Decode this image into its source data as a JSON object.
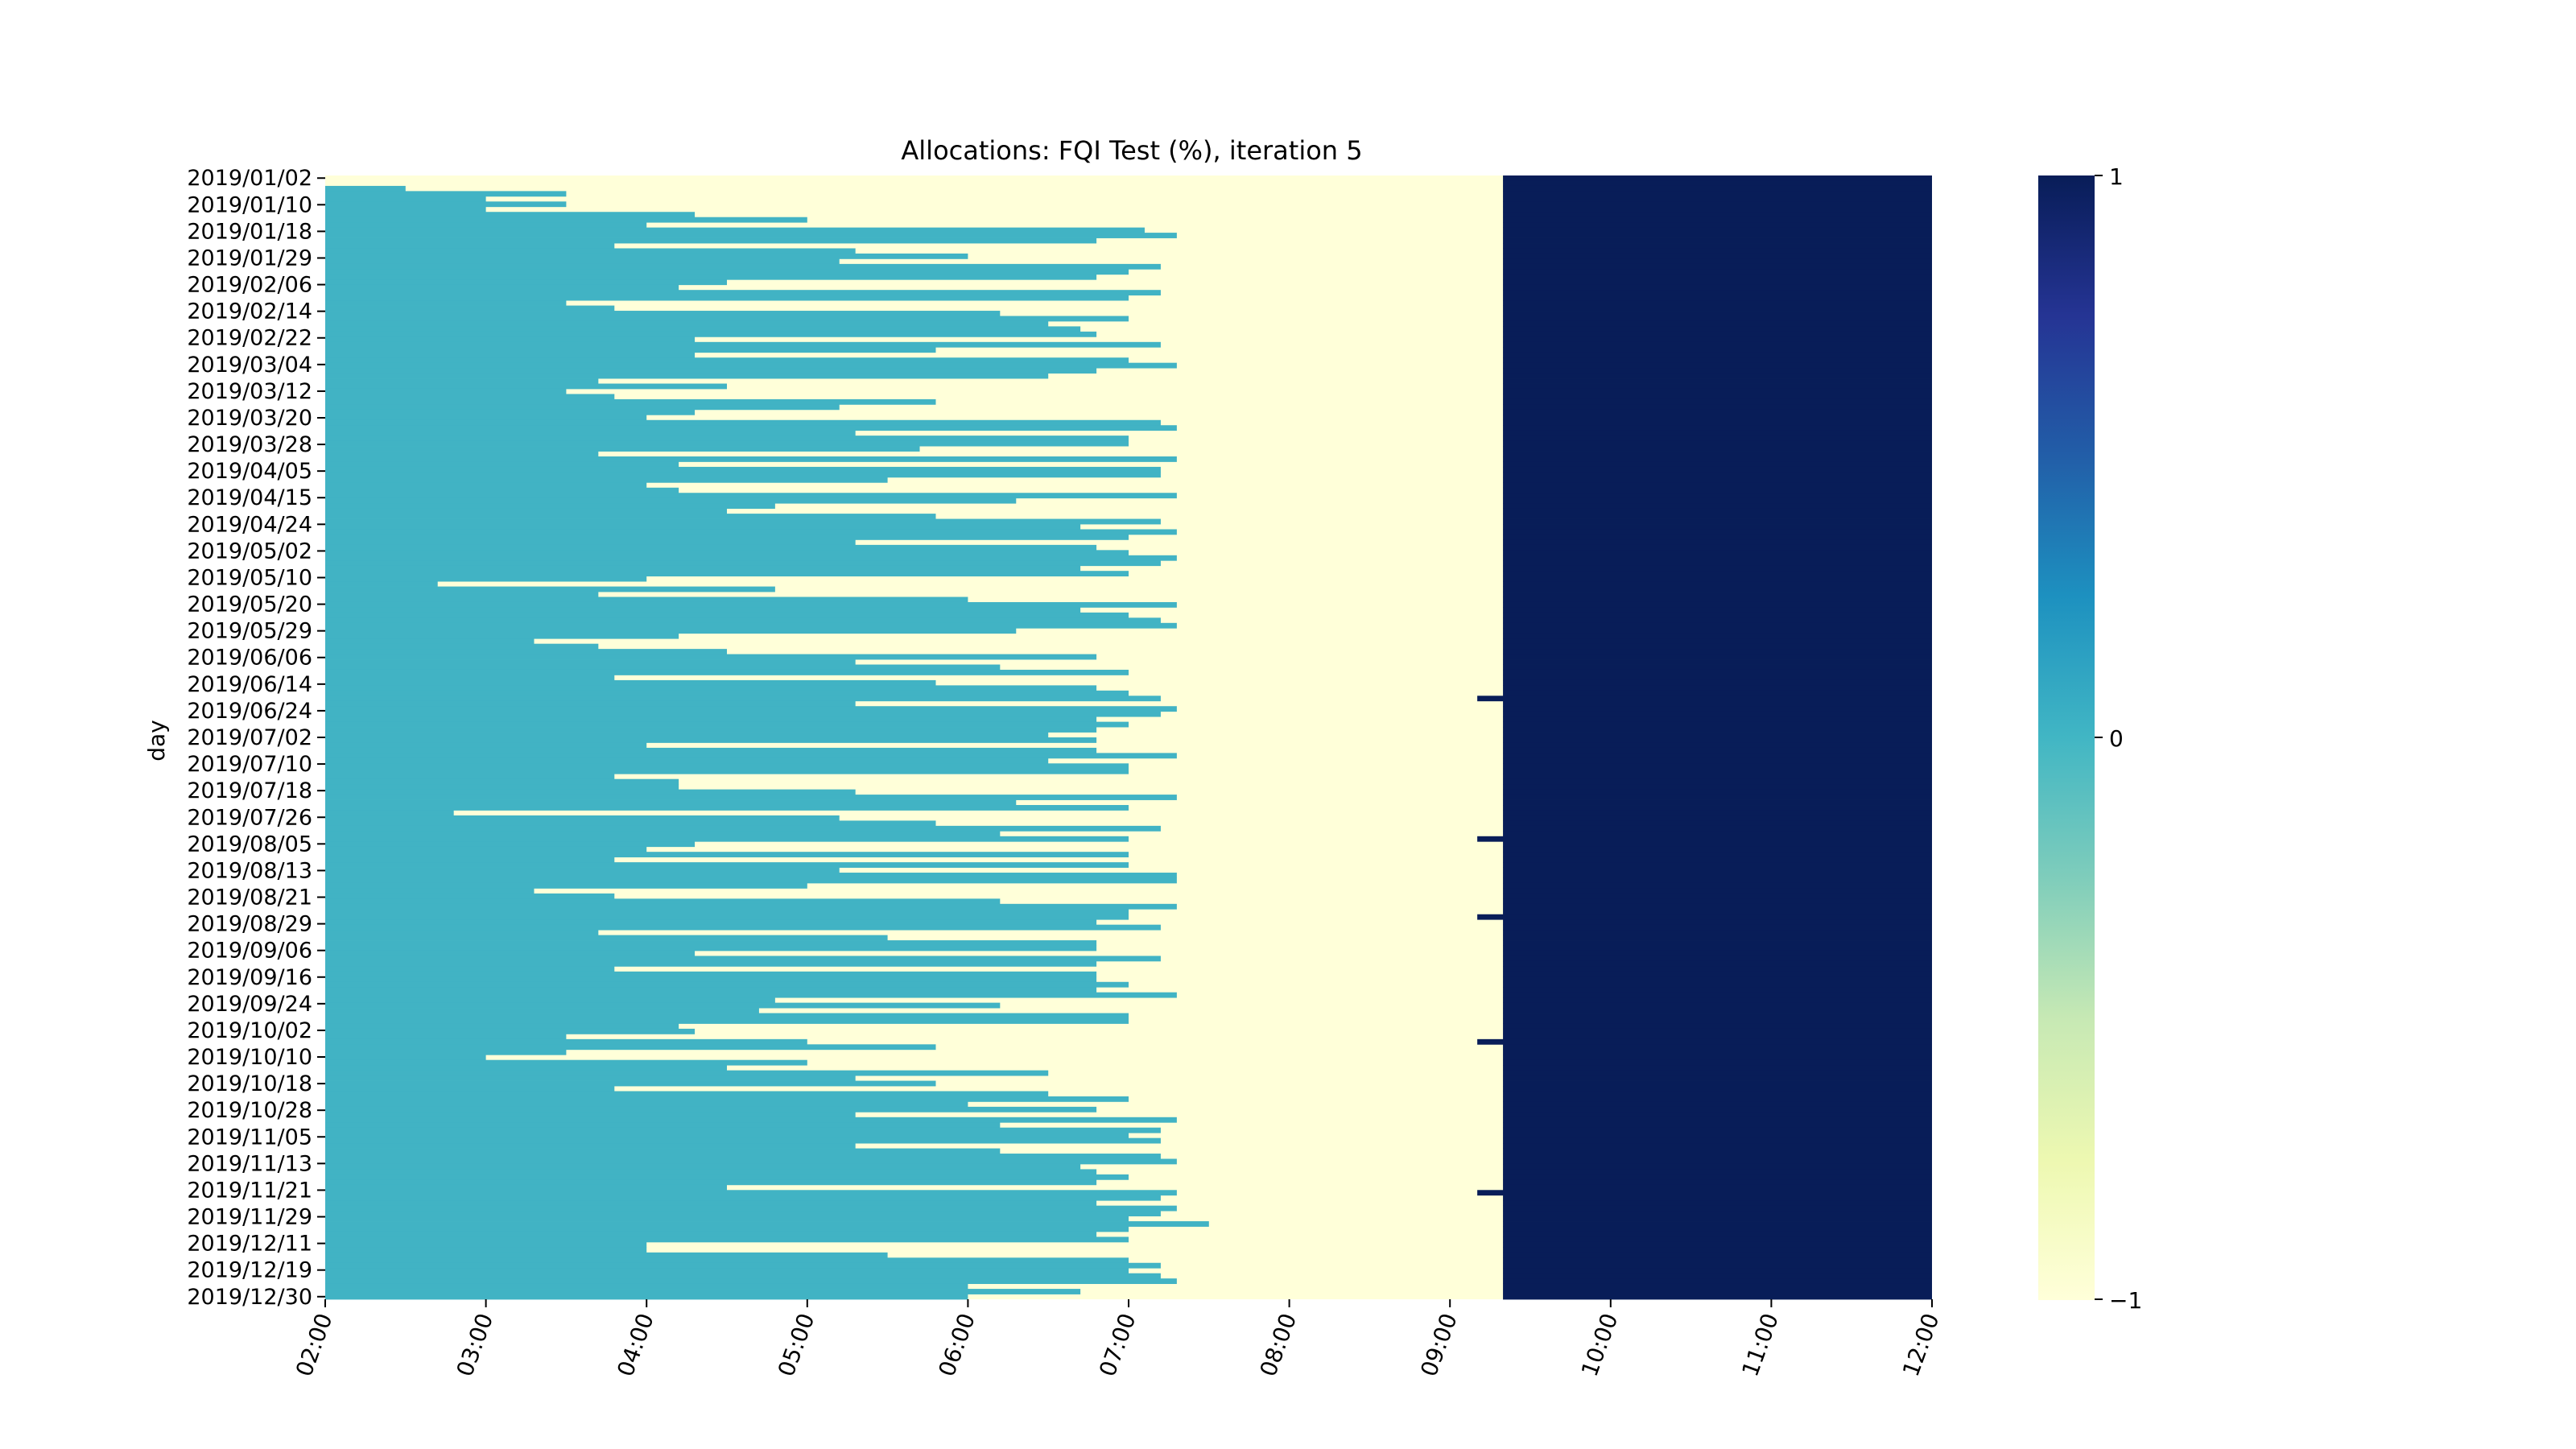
{
  "chart_data": {
    "type": "heatmap",
    "title": "Allocations: FQI Test (%), iteration 5",
    "ylabel": "day",
    "xlabel": "",
    "x_ticks": [
      "02:00",
      "03:00",
      "04:00",
      "05:00",
      "06:00",
      "07:00",
      "08:00",
      "09:00",
      "10:00",
      "11:00",
      "12:00"
    ],
    "y_ticks": [
      "2019/01/02",
      "2019/01/10",
      "2019/01/18",
      "2019/01/29",
      "2019/02/06",
      "2019/02/14",
      "2019/02/22",
      "2019/03/04",
      "2019/03/12",
      "2019/03/20",
      "2019/03/28",
      "2019/04/05",
      "2019/04/15",
      "2019/04/24",
      "2019/05/02",
      "2019/05/10",
      "2019/05/20",
      "2019/05/29",
      "2019/06/06",
      "2019/06/14",
      "2019/06/24",
      "2019/07/02",
      "2019/07/10",
      "2019/07/18",
      "2019/07/26",
      "2019/08/05",
      "2019/08/13",
      "2019/08/21",
      "2019/08/29",
      "2019/09/06",
      "2019/09/16",
      "2019/09/24",
      "2019/10/02",
      "2019/10/10",
      "2019/10/18",
      "2019/10/28",
      "2019/11/05",
      "2019/11/13",
      "2019/11/21",
      "2019/11/29",
      "2019/12/11",
      "2019/12/19",
      "2019/12/30"
    ],
    "colorbar": {
      "ticks": [
        "1",
        "0",
        "−1"
      ],
      "colormap": "YlGnBu",
      "vmin": -1,
      "vmax": 1
    },
    "values_legend": {
      "0": "teal #41b3c4",
      "-1": "pale yellow #ffffd9",
      "1": "navy #081d58"
    },
    "x_range": [
      "02:00",
      "12:00"
    ],
    "slot_minutes": 10,
    "rows": [
      [
        0.5,
        9.33,
        9.5
      ],
      [
        1.0,
        9.33,
        9.5
      ],
      [
        2.5,
        9.33,
        9.5
      ],
      [
        3.5,
        9.33,
        9.5
      ],
      [
        3.0,
        9.33,
        9.5
      ],
      [
        3.5,
        9.33,
        9.5
      ],
      [
        3.0,
        9.33,
        9.5
      ],
      [
        4.3,
        9.33,
        9.5
      ],
      [
        5.0,
        9.33,
        9.5
      ],
      [
        4.0,
        9.33,
        9.5
      ],
      [
        7.1,
        9.33,
        9.5
      ],
      [
        7.3,
        9.33,
        9.5
      ],
      [
        6.8,
        9.33,
        9.5
      ],
      [
        3.8,
        9.33,
        9.5
      ],
      [
        5.3,
        9.33,
        9.5
      ],
      [
        6.0,
        9.33,
        9.5
      ],
      [
        5.2,
        9.33,
        9.5
      ],
      [
        7.2,
        9.33,
        9.5
      ],
      [
        7.0,
        9.33,
        9.5
      ],
      [
        6.8,
        9.33,
        9.5
      ],
      [
        4.5,
        9.33,
        9.5
      ],
      [
        4.2,
        9.33,
        9.5
      ],
      [
        7.2,
        9.33,
        9.5
      ],
      [
        7.0,
        9.33,
        9.5
      ],
      [
        3.5,
        9.33,
        9.5
      ],
      [
        3.8,
        9.33,
        9.5
      ],
      [
        6.2,
        9.33,
        9.5
      ],
      [
        7.0,
        9.33,
        9.5
      ],
      [
        6.5,
        9.33,
        9.5
      ],
      [
        6.7,
        9.33,
        9.5
      ],
      [
        6.8,
        9.33,
        9.5
      ],
      [
        4.3,
        9.33,
        9.5
      ],
      [
        7.2,
        9.33,
        9.5
      ],
      [
        5.8,
        9.33,
        9.5
      ],
      [
        4.3,
        9.33,
        9.5
      ],
      [
        7.0,
        9.33,
        9.5
      ],
      [
        7.3,
        9.33,
        9.5
      ],
      [
        6.8,
        9.33,
        9.5
      ],
      [
        6.5,
        9.33,
        9.5
      ],
      [
        3.7,
        9.33,
        9.5
      ],
      [
        4.5,
        9.33,
        9.5
      ],
      [
        3.5,
        9.33,
        9.5
      ],
      [
        3.8,
        9.33,
        9.5
      ],
      [
        5.8,
        9.33,
        9.5
      ],
      [
        5.2,
        9.33,
        9.5
      ],
      [
        4.3,
        9.33,
        9.5
      ],
      [
        4.0,
        9.33,
        9.5
      ],
      [
        7.2,
        9.33,
        9.5
      ],
      [
        7.3,
        9.33,
        9.5
      ],
      [
        5.3,
        9.33,
        9.5
      ],
      [
        7.0,
        9.33,
        9.5
      ],
      [
        7.0,
        9.33,
        9.5
      ],
      [
        5.7,
        9.33,
        9.5
      ],
      [
        3.7,
        9.33,
        9.5
      ],
      [
        7.3,
        9.33,
        9.5
      ],
      [
        4.2,
        9.33,
        9.5
      ],
      [
        7.2,
        9.33,
        9.5
      ],
      [
        7.2,
        9.33,
        9.5
      ],
      [
        5.5,
        9.33,
        9.5
      ],
      [
        4.0,
        9.33,
        9.5
      ],
      [
        4.2,
        9.33,
        9.5
      ],
      [
        7.3,
        9.33,
        9.5
      ],
      [
        6.3,
        9.33,
        9.5
      ],
      [
        4.8,
        9.33,
        9.5
      ],
      [
        4.5,
        9.33,
        9.5
      ],
      [
        5.8,
        9.33,
        9.5
      ],
      [
        7.2,
        9.33,
        9.5
      ],
      [
        6.7,
        9.33,
        9.5
      ],
      [
        7.3,
        9.33,
        9.5
      ],
      [
        7.0,
        9.33,
        9.5
      ],
      [
        5.3,
        9.33,
        9.5
      ],
      [
        6.8,
        9.33,
        9.5
      ],
      [
        7.0,
        9.33,
        9.5
      ],
      [
        7.3,
        9.33,
        9.5
      ],
      [
        7.2,
        9.33,
        9.5
      ],
      [
        6.7,
        9.33,
        9.5
      ],
      [
        7.0,
        9.33,
        9.5
      ],
      [
        4.0,
        9.33,
        9.5
      ],
      [
        2.7,
        9.33,
        9.5
      ],
      [
        4.8,
        9.33,
        9.5
      ],
      [
        3.7,
        9.33,
        9.5
      ],
      [
        6.0,
        9.33,
        9.5
      ],
      [
        7.3,
        9.33,
        9.5
      ],
      [
        6.7,
        9.33,
        9.5
      ],
      [
        7.0,
        9.33,
        9.5
      ],
      [
        7.2,
        9.33,
        9.5
      ],
      [
        7.3,
        9.33,
        9.5
      ],
      [
        6.3,
        9.33,
        9.5
      ],
      [
        4.2,
        9.33,
        9.5
      ],
      [
        3.3,
        9.33,
        9.5
      ],
      [
        3.7,
        9.33,
        9.5
      ],
      [
        4.5,
        9.33,
        9.5
      ],
      [
        6.8,
        9.33,
        9.5
      ],
      [
        5.3,
        9.33,
        9.5
      ],
      [
        6.2,
        9.33,
        9.5
      ],
      [
        7.0,
        9.33,
        9.5
      ],
      [
        3.8,
        9.33,
        9.5
      ],
      [
        5.8,
        9.33,
        9.5
      ],
      [
        6.8,
        9.33,
        9.5
      ],
      [
        7.0,
        9.33,
        9.5
      ],
      [
        7.2,
        9.17,
        9.5
      ],
      [
        5.3,
        9.33,
        9.5
      ],
      [
        7.3,
        9.33,
        9.5
      ],
      [
        7.2,
        9.33,
        9.5
      ],
      [
        6.8,
        9.33,
        9.5
      ],
      [
        7.0,
        9.33,
        9.5
      ],
      [
        6.8,
        9.33,
        9.5
      ],
      [
        6.5,
        9.33,
        9.5
      ],
      [
        6.8,
        9.33,
        9.5
      ],
      [
        4.0,
        9.33,
        9.5
      ],
      [
        6.8,
        9.33,
        9.5
      ],
      [
        7.3,
        9.33,
        9.5
      ],
      [
        6.5,
        9.33,
        9.5
      ],
      [
        7.0,
        9.33,
        9.5
      ],
      [
        7.0,
        9.33,
        9.5
      ],
      [
        3.8,
        9.33,
        9.5
      ],
      [
        4.2,
        9.33,
        9.5
      ],
      [
        4.2,
        9.33,
        9.5
      ],
      [
        5.3,
        9.33,
        9.5
      ],
      [
        7.3,
        9.33,
        9.5
      ],
      [
        6.3,
        9.33,
        9.5
      ],
      [
        7.0,
        9.33,
        9.5
      ],
      [
        2.8,
        9.33,
        9.5
      ],
      [
        5.2,
        9.33,
        9.5
      ],
      [
        5.8,
        9.33,
        9.5
      ],
      [
        7.2,
        9.33,
        9.5
      ],
      [
        6.2,
        9.33,
        9.5
      ],
      [
        7.0,
        9.17,
        9.5
      ],
      [
        4.3,
        9.33,
        9.5
      ],
      [
        4.0,
        9.33,
        9.5
      ],
      [
        7.0,
        9.33,
        9.5
      ],
      [
        3.8,
        9.33,
        9.5
      ],
      [
        7.0,
        9.33,
        9.5
      ],
      [
        5.2,
        9.33,
        9.5
      ],
      [
        7.3,
        9.33,
        9.5
      ],
      [
        7.3,
        9.33,
        9.5
      ],
      [
        5.0,
        9.33,
        9.5
      ],
      [
        3.3,
        9.33,
        9.5
      ],
      [
        3.8,
        9.33,
        9.5
      ],
      [
        6.2,
        9.33,
        9.5
      ],
      [
        7.3,
        9.33,
        9.5
      ],
      [
        7.0,
        9.33,
        9.5
      ],
      [
        7.0,
        9.17,
        9.5
      ],
      [
        6.8,
        9.33,
        9.5
      ],
      [
        7.2,
        9.33,
        9.5
      ],
      [
        3.7,
        9.33,
        9.67
      ],
      [
        5.5,
        9.33,
        9.5
      ],
      [
        6.8,
        9.33,
        9.5
      ],
      [
        6.8,
        9.33,
        9.5
      ],
      [
        4.3,
        9.33,
        9.5
      ],
      [
        7.2,
        9.33,
        9.5
      ],
      [
        6.8,
        9.33,
        9.5
      ],
      [
        3.8,
        9.33,
        9.5
      ],
      [
        6.8,
        9.33,
        9.5
      ],
      [
        6.8,
        9.33,
        9.5
      ],
      [
        7.0,
        9.33,
        9.5
      ],
      [
        6.8,
        9.33,
        9.5
      ],
      [
        7.3,
        9.33,
        9.5
      ],
      [
        4.8,
        9.33,
        9.5
      ],
      [
        6.2,
        9.33,
        9.5
      ],
      [
        4.7,
        9.33,
        9.5
      ],
      [
        7.0,
        9.33,
        9.5
      ],
      [
        7.0,
        9.33,
        9.5
      ],
      [
        4.2,
        9.33,
        9.5
      ],
      [
        4.3,
        9.33,
        9.5
      ],
      [
        3.5,
        9.33,
        9.5
      ],
      [
        5.0,
        9.17,
        9.5
      ],
      [
        5.8,
        9.33,
        9.5
      ],
      [
        3.5,
        9.33,
        9.5
      ],
      [
        3.0,
        9.33,
        9.5
      ],
      [
        5.0,
        9.33,
        9.5
      ],
      [
        4.5,
        9.33,
        9.5
      ],
      [
        6.5,
        9.33,
        9.5
      ],
      [
        5.3,
        9.33,
        9.5
      ],
      [
        5.8,
        9.33,
        9.5
      ],
      [
        3.8,
        9.33,
        9.5
      ],
      [
        6.5,
        9.33,
        9.5
      ],
      [
        7.0,
        9.33,
        9.5
      ],
      [
        6.0,
        9.33,
        9.5
      ],
      [
        6.8,
        9.33,
        9.5
      ],
      [
        5.3,
        9.33,
        9.5
      ],
      [
        7.3,
        9.33,
        9.5
      ],
      [
        6.2,
        9.33,
        9.5
      ],
      [
        7.2,
        9.33,
        9.5
      ],
      [
        7.0,
        9.33,
        9.5
      ],
      [
        7.2,
        9.33,
        9.5
      ],
      [
        5.3,
        9.33,
        9.5
      ],
      [
        6.2,
        9.33,
        9.5
      ],
      [
        7.2,
        9.33,
        9.5
      ],
      [
        7.3,
        9.33,
        9.5
      ],
      [
        6.7,
        9.33,
        9.5
      ],
      [
        6.8,
        9.33,
        9.5
      ],
      [
        7.0,
        9.33,
        9.5
      ],
      [
        6.8,
        9.33,
        9.5
      ],
      [
        4.5,
        9.33,
        9.5
      ],
      [
        7.3,
        9.17,
        9.5
      ],
      [
        7.2,
        9.33,
        9.5
      ],
      [
        6.8,
        9.33,
        9.5
      ],
      [
        7.3,
        9.33,
        9.5
      ],
      [
        7.2,
        9.33,
        9.5
      ],
      [
        7.0,
        9.33,
        9.5
      ],
      [
        7.5,
        9.33,
        9.5
      ],
      [
        7.0,
        9.33,
        9.5
      ],
      [
        6.8,
        9.33,
        9.5
      ],
      [
        7.0,
        9.33,
        9.5
      ],
      [
        4.0,
        9.33,
        9.5
      ],
      [
        4.0,
        9.33,
        9.5
      ],
      [
        5.5,
        9.33,
        9.5
      ],
      [
        7.0,
        9.33,
        9.5
      ],
      [
        7.2,
        9.33,
        9.5
      ],
      [
        7.0,
        9.33,
        9.5
      ],
      [
        7.2,
        9.33,
        9.5
      ],
      [
        7.3,
        9.33,
        9.5
      ],
      [
        6.0,
        9.33,
        9.5
      ],
      [
        6.7,
        9.33,
        9.5
      ],
      [
        6.0,
        9.33,
        9.5
      ]
    ]
  },
  "colors": {
    "zero": "#41b3c4",
    "negative": "#ffffd9",
    "positive": "#081d58"
  }
}
